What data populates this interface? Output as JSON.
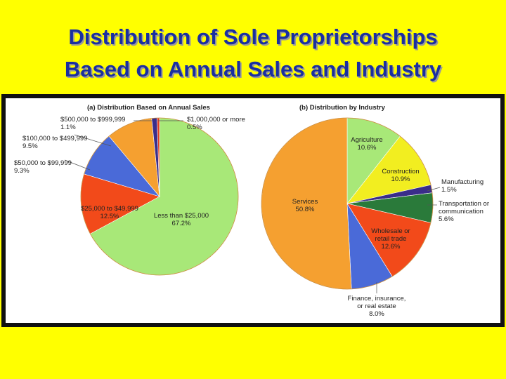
{
  "slide": {
    "title_line1": "Distribution of Sole Proprietorships",
    "title_line2": "Based on Annual Sales and Industry"
  },
  "chart_data": [
    {
      "type": "pie",
      "title": "(a) Distribution Based on Annual Sales",
      "slices": [
        {
          "label": "Less than $25,000",
          "value": 67.2,
          "value_label": "67.2%",
          "color": "#a8e878"
        },
        {
          "label": "$25,000 to $49,999",
          "value": 12.5,
          "value_label": "12.5%",
          "color": "#f24a1a"
        },
        {
          "label": "$50,000 to $99,999",
          "value": 9.3,
          "value_label": "9.3%",
          "color": "#4a6ad8"
        },
        {
          "label": "$100,000 to $499,999",
          "value": 9.5,
          "value_label": "9.5%",
          "color": "#f5a030"
        },
        {
          "label": "$500,000 to $999,999",
          "value": 1.1,
          "value_label": "1.1%",
          "color": "#3a2d8a"
        },
        {
          "label": "$1,000,000 or more",
          "value": 0.5,
          "value_label": "0.5%",
          "color": "#e03a20"
        }
      ]
    },
    {
      "type": "pie",
      "title": "(b) Distribution by Industry",
      "slices": [
        {
          "label": "Agriculture",
          "value": 10.6,
          "value_label": "10.6%",
          "color": "#a8e878"
        },
        {
          "label": "Construction",
          "value": 10.9,
          "value_label": "10.9%",
          "color": "#f2ee20"
        },
        {
          "label": "Manufacturing",
          "value": 1.5,
          "value_label": "1.5%",
          "color": "#3a2d8a"
        },
        {
          "label": "Transportation or communication",
          "value": 5.6,
          "value_label": "5.6%",
          "color": "#2a7a3a"
        },
        {
          "label": "Wholesale or retail trade",
          "value": 12.6,
          "value_label": "12.6%",
          "color": "#f24a1a"
        },
        {
          "label": "Finance, insurance, or real estate",
          "value": 8.0,
          "value_label": "8.0%",
          "color": "#4a6ad8"
        },
        {
          "label": "Services",
          "value": 50.8,
          "value_label": "50.8%",
          "color": "#f5a030"
        }
      ]
    }
  ]
}
